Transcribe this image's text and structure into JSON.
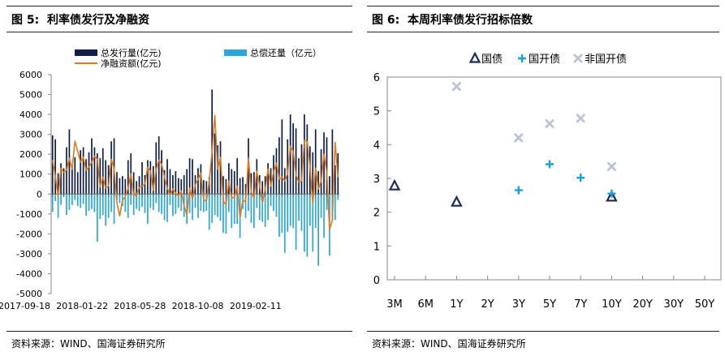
{
  "left": {
    "title": "图 5:  利率债发行及净融资",
    "source": "资料来源：WIND、国海证券研究所"
  },
  "right": {
    "title": "图 6:  本周利率债发行招标倍数",
    "source": "资料来源：WIND、国海证券研究所"
  },
  "colors": {
    "issuance": "#0f1f4a",
    "repayment": "#2aa7d6",
    "net": "#e07a1f",
    "guozhai": "#1b2a5c",
    "guokai": "#1aa0dc",
    "feiguokai": "#b9c6d9"
  },
  "chart_data": [
    {
      "type": "bar",
      "subtype": "bar+line",
      "xlabel": "",
      "ylabel": "",
      "ylim": [
        -5000,
        6000
      ],
      "yticks": [
        "6000",
        "5000",
        "4000",
        "3000",
        "2000",
        "1000",
        "0",
        "-1000",
        "-2000",
        "-3000",
        "-4000",
        "-5000"
      ],
      "xticks": [
        "2017-09-18",
        "2018-01-22",
        "2018-05-28",
        "2018-10-08",
        "2019-02-11"
      ],
      "grid": false,
      "legend_position": "top",
      "series": [
        {
          "name": "总发行量(亿元)",
          "kind": "bar",
          "values": [
            2950,
            2750,
            1050,
            1550,
            1300,
            2350,
            3250,
            1350,
            1850,
            1100,
            2200,
            2350,
            1750,
            2100,
            2800,
            2350,
            2050,
            1800,
            2300,
            1700,
            1450,
            2650,
            2800,
            1100,
            800,
            900,
            750,
            1700,
            2050,
            1100,
            650,
            900,
            1600,
            950,
            1700,
            1650,
            1400,
            2600,
            2900,
            2200,
            1200,
            1750,
            1250,
            950,
            1150,
            800,
            750,
            950,
            1250,
            1800,
            1750,
            950,
            1300,
            1500,
            700,
            650,
            850,
            5250,
            3050,
            2450,
            2650,
            900,
            750,
            1550,
            1250,
            1150,
            1800,
            800,
            850,
            500,
            2800,
            1050,
            1100,
            1750,
            950,
            650,
            900,
            1550,
            1300,
            1950,
            2300,
            2850,
            3750,
            1300,
            2750,
            4000,
            3550,
            3300,
            1800,
            2500,
            4000,
            3500,
            2400,
            2100,
            3250,
            1150,
            2250,
            3100,
            2850,
            900,
            3250,
            1450,
            2050
          ]
        },
        {
          "name": "总偿还量（亿元）",
          "kind": "bar",
          "values": [
            -900,
            -350,
            -1200,
            -550,
            -150,
            -1050,
            -800,
            -550,
            -300,
            -600,
            -700,
            -500,
            -1100,
            -850,
            -750,
            -900,
            -2400,
            -1250,
            -1050,
            -1600,
            -1200,
            -900,
            -1500,
            -300,
            -450,
            -600,
            -900,
            -1200,
            -550,
            -1050,
            -750,
            -850,
            -650,
            -950,
            -1500,
            -700,
            -800,
            -450,
            -900,
            -1000,
            -1300,
            -1400,
            -550,
            -1100,
            -1000,
            -700,
            -850,
            -1150,
            -1500,
            -950,
            -1300,
            -700,
            -1200,
            -850,
            -900,
            -850,
            -1800,
            -1450,
            -1050,
            -1150,
            -1350,
            -1950,
            -2000,
            -900,
            -1700,
            -1500,
            -1500,
            -2200,
            -750,
            -1200,
            -850,
            -1450,
            -1700,
            -700,
            -1300,
            -1400,
            -1650,
            -1300,
            -600,
            -850,
            -1150,
            -2150,
            -1950,
            -2950,
            -1900,
            -1600,
            -1700,
            -2800,
            -1350,
            -1850,
            -2900,
            -3150,
            -1600,
            -2900,
            -1700,
            -3600,
            -1200,
            -2200,
            -800,
            -3100,
            -1300,
            -1300,
            -300
          ]
        },
        {
          "name": "净融资额(亿元)",
          "kind": "line",
          "values": [
            1700,
            900,
            -150,
            1300,
            1100,
            1200,
            1800,
            1250,
            2650,
            2150,
            1600,
            1850,
            1200,
            1350,
            1600,
            1900,
            1750,
            350,
            850,
            300,
            400,
            1750,
            1300,
            -450,
            -1100,
            -300,
            -150,
            300,
            1000,
            -100,
            -50,
            350,
            400,
            500,
            1350,
            1150,
            200,
            1200,
            1700,
            1500,
            850,
            300,
            -50,
            250,
            50,
            -100,
            150,
            -600,
            -1050,
            300,
            -250,
            450,
            750,
            1050,
            -300,
            -350,
            650,
            2100,
            3950,
            1250,
            1850,
            -350,
            -550,
            650,
            -200,
            -150,
            400,
            -1200,
            -300,
            -400,
            1800,
            100,
            -200,
            1150,
            400,
            -450,
            250,
            1250,
            400,
            1100,
            1550,
            750,
            850,
            650,
            1000,
            2400,
            2150,
            950,
            600,
            650,
            2700,
            2650,
            1350,
            -500,
            1300,
            250,
            650,
            2000,
            1100,
            -1800,
            -1300,
            2600,
            850
          ]
        }
      ]
    },
    {
      "type": "scatter",
      "xlabel": "",
      "ylabel": "",
      "categories": [
        "3M",
        "6M",
        "1Y",
        "2Y",
        "3Y",
        "5Y",
        "7Y",
        "10Y",
        "20Y",
        "30Y",
        "50Y"
      ],
      "ylim": [
        0,
        6
      ],
      "yticks": [
        "0",
        "1",
        "2",
        "3",
        "4",
        "5",
        "6"
      ],
      "grid": false,
      "legend_position": "top",
      "series": [
        {
          "name": "国债",
          "marker": "triangle",
          "points": [
            {
              "x": "3M",
              "y": 2.78
            },
            {
              "x": "1Y",
              "y": 2.3
            },
            {
              "x": "10Y",
              "y": 2.45
            }
          ]
        },
        {
          "name": "国开债",
          "marker": "plus",
          "points": [
            {
              "x": "3Y",
              "y": 2.65
            },
            {
              "x": "5Y",
              "y": 3.42
            },
            {
              "x": "7Y",
              "y": 3.02
            },
            {
              "x": "10Y",
              "y": 2.55
            }
          ]
        },
        {
          "name": "非国开债",
          "marker": "x",
          "points": [
            {
              "x": "1Y",
              "y": 5.72
            },
            {
              "x": "3Y",
              "y": 4.2
            },
            {
              "x": "5Y",
              "y": 4.62
            },
            {
              "x": "7Y",
              "y": 4.78
            },
            {
              "x": "10Y",
              "y": 3.35
            }
          ]
        }
      ]
    }
  ]
}
